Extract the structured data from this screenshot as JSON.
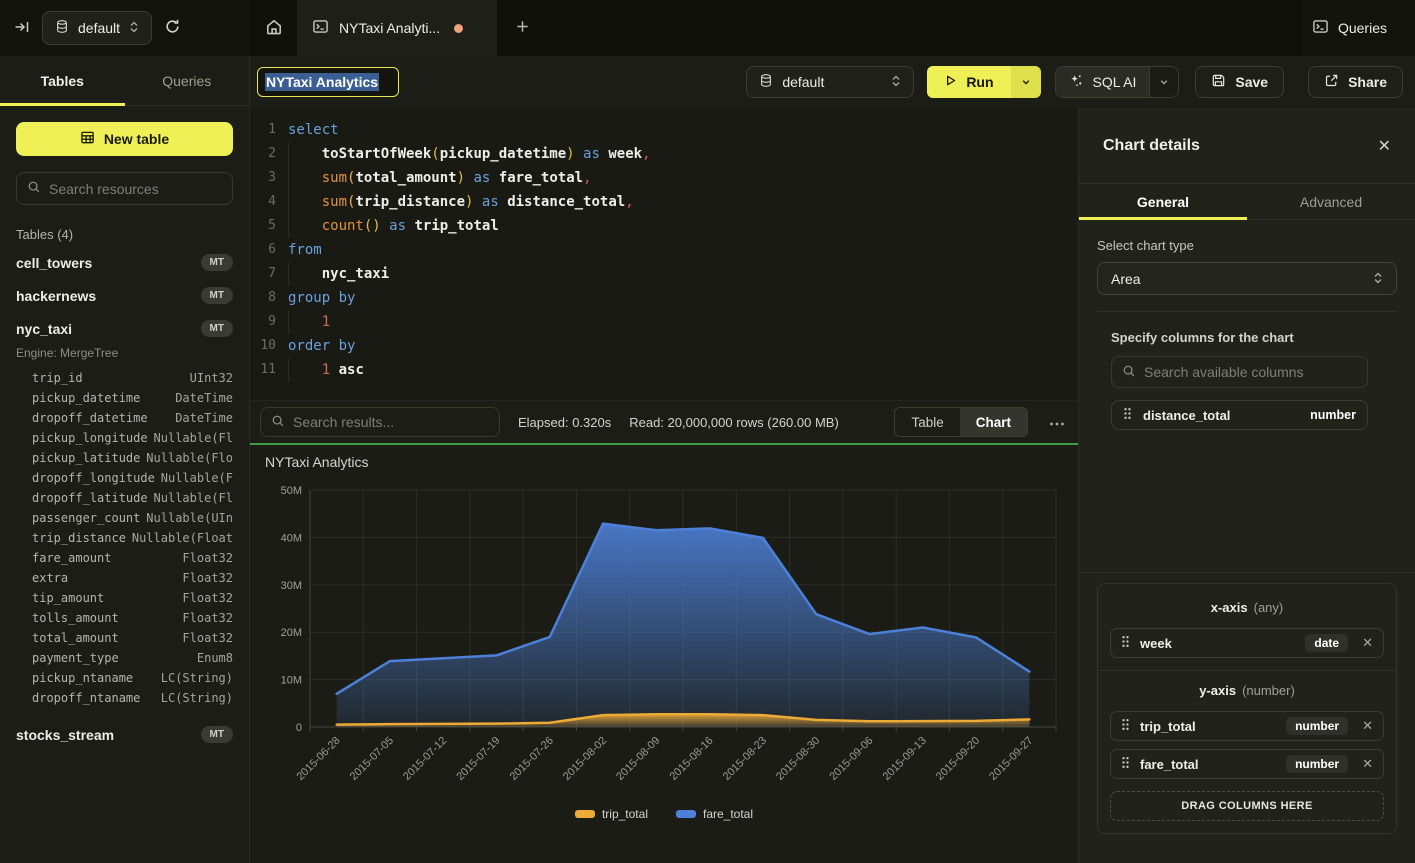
{
  "topbar": {
    "database_selector": {
      "value": "default"
    },
    "tab": {
      "title": "NYTaxi Analyti...",
      "unsaved": true
    },
    "queries_label": "Queries"
  },
  "toolbar": {
    "query_title": "NYTaxi Analytics",
    "database_selector": {
      "value": "default"
    },
    "run_label": "Run",
    "sql_ai_label": "SQL AI",
    "save_label": "Save",
    "share_label": "Share"
  },
  "sidebar": {
    "tabs": [
      {
        "label": "Tables",
        "active": true
      },
      {
        "label": "Queries",
        "active": false
      }
    ],
    "new_table_label": "New table",
    "search_placeholder": "Search resources",
    "section_label": "Tables (4)",
    "tables": [
      {
        "name": "cell_towers",
        "badge": "MT"
      },
      {
        "name": "hackernews",
        "badge": "MT"
      },
      {
        "name": "nyc_taxi",
        "badge": "MT",
        "engine": "Engine: MergeTree",
        "columns": [
          {
            "name": "trip_id",
            "type": "UInt32"
          },
          {
            "name": "pickup_datetime",
            "type": "DateTime"
          },
          {
            "name": "dropoff_datetime",
            "type": "DateTime"
          },
          {
            "name": "pickup_longitude",
            "type": "Nullable(Fl"
          },
          {
            "name": "pickup_latitude",
            "type": "Nullable(Flo"
          },
          {
            "name": "dropoff_longitude",
            "type": "Nullable(F"
          },
          {
            "name": "dropoff_latitude",
            "type": "Nullable(Fl"
          },
          {
            "name": "passenger_count",
            "type": "Nullable(UIn"
          },
          {
            "name": "trip_distance",
            "type": "Nullable(Float"
          },
          {
            "name": "fare_amount",
            "type": "Float32"
          },
          {
            "name": "extra",
            "type": "Float32"
          },
          {
            "name": "tip_amount",
            "type": "Float32"
          },
          {
            "name": "tolls_amount",
            "type": "Float32"
          },
          {
            "name": "total_amount",
            "type": "Float32"
          },
          {
            "name": "payment_type",
            "type": "Enum8"
          },
          {
            "name": "pickup_ntaname",
            "type": "LC(String)"
          },
          {
            "name": "dropoff_ntaname",
            "type": "LC(String)"
          }
        ]
      },
      {
        "name": "stocks_stream",
        "badge": "MT"
      }
    ]
  },
  "editor": {
    "lines": [
      {
        "n": 1,
        "ind": false,
        "tokens": [
          [
            "kw",
            "select"
          ]
        ]
      },
      {
        "n": 2,
        "ind": true,
        "tokens": [
          [
            "sp",
            "    "
          ],
          [
            "idb",
            "toStartOfWeek"
          ],
          [
            "par",
            "("
          ],
          [
            "idb",
            "pickup_datetime"
          ],
          [
            "par",
            ")"
          ],
          [
            "sp",
            " "
          ],
          [
            "kw",
            "as"
          ],
          [
            "sp",
            " "
          ],
          [
            "idb",
            "week"
          ],
          [
            "com",
            ","
          ]
        ]
      },
      {
        "n": 3,
        "ind": true,
        "tokens": [
          [
            "sp",
            "    "
          ],
          [
            "fn",
            "sum"
          ],
          [
            "par",
            "("
          ],
          [
            "idb",
            "total_amount"
          ],
          [
            "par",
            ")"
          ],
          [
            "sp",
            " "
          ],
          [
            "kw",
            "as"
          ],
          [
            "sp",
            " "
          ],
          [
            "idb",
            "fare_total"
          ],
          [
            "com",
            ","
          ]
        ]
      },
      {
        "n": 4,
        "ind": true,
        "tokens": [
          [
            "sp",
            "    "
          ],
          [
            "fn",
            "sum"
          ],
          [
            "par",
            "("
          ],
          [
            "idb",
            "trip_distance"
          ],
          [
            "par",
            ")"
          ],
          [
            "sp",
            " "
          ],
          [
            "kw",
            "as"
          ],
          [
            "sp",
            " "
          ],
          [
            "idb",
            "distance_total"
          ],
          [
            "com",
            ","
          ]
        ]
      },
      {
        "n": 5,
        "ind": true,
        "tokens": [
          [
            "sp",
            "    "
          ],
          [
            "fn",
            "count"
          ],
          [
            "par",
            "()"
          ],
          [
            "sp",
            " "
          ],
          [
            "kw",
            "as"
          ],
          [
            "sp",
            " "
          ],
          [
            "idb",
            "trip_total"
          ]
        ]
      },
      {
        "n": 6,
        "ind": false,
        "tokens": [
          [
            "kw",
            "from"
          ]
        ]
      },
      {
        "n": 7,
        "ind": true,
        "tokens": [
          [
            "sp",
            "    "
          ],
          [
            "idb",
            "nyc_taxi"
          ]
        ]
      },
      {
        "n": 8,
        "ind": false,
        "tokens": [
          [
            "kw",
            "group by"
          ]
        ]
      },
      {
        "n": 9,
        "ind": true,
        "tokens": [
          [
            "sp",
            "    "
          ],
          [
            "num",
            "1"
          ]
        ]
      },
      {
        "n": 10,
        "ind": false,
        "tokens": [
          [
            "kw",
            "order by"
          ]
        ]
      },
      {
        "n": 11,
        "ind": true,
        "tokens": [
          [
            "sp",
            "    "
          ],
          [
            "num",
            "1"
          ],
          [
            "sp",
            " "
          ],
          [
            "idb",
            "asc"
          ]
        ]
      }
    ]
  },
  "results": {
    "search_placeholder": "Search results...",
    "elapsed": "Elapsed: 0.320s",
    "read": "Read: 20,000,000 rows (260.00 MB)",
    "views": [
      {
        "label": "Table",
        "active": false
      },
      {
        "label": "Chart",
        "active": true
      }
    ]
  },
  "chart_data": {
    "type": "area",
    "title": "NYTaxi Analytics",
    "x": [
      "2015-06-28",
      "2015-07-05",
      "2015-07-12",
      "2015-07-19",
      "2015-07-26",
      "2015-08-02",
      "2015-08-09",
      "2015-08-16",
      "2015-08-23",
      "2015-08-30",
      "2015-09-06",
      "2015-09-13",
      "2015-09-20",
      "2015-09-27"
    ],
    "values_unit": "millions",
    "series": [
      {
        "name": "trip_total",
        "color": "#edaa35",
        "values": [
          0.5,
          0.6,
          0.65,
          0.7,
          0.9,
          2.5,
          2.7,
          2.7,
          2.5,
          1.5,
          1.2,
          1.25,
          1.3,
          1.6
        ]
      },
      {
        "name": "fare_total",
        "color": "#4d80d8",
        "values": [
          7.0,
          13.9,
          14.5,
          15.1,
          19.0,
          42.9,
          41.5,
          41.9,
          39.9,
          23.8,
          19.6,
          21.0,
          18.9,
          11.7
        ]
      }
    ],
    "ylim": [
      0,
      50
    ],
    "y_ticks": [
      "0",
      "10M",
      "20M",
      "30M",
      "40M",
      "50M"
    ],
    "x_label_rotation": 45,
    "grid": true,
    "legend_position": "bottom"
  },
  "chart_panel": {
    "title": "Chart details",
    "tabs": [
      {
        "label": "General",
        "active": true
      },
      {
        "label": "Advanced",
        "active": false
      }
    ],
    "chart_type_label": "Select chart type",
    "chart_type_value": "Area",
    "columns_label": "Specify columns for the chart",
    "search_placeholder": "Search available columns",
    "available_columns": [
      {
        "name": "distance_total",
        "type": "number"
      }
    ],
    "x_axis": {
      "title": "x-axis",
      "hint": "(any)",
      "items": [
        {
          "name": "week",
          "type": "date"
        }
      ]
    },
    "y_axis": {
      "title": "y-axis",
      "hint": "(number)",
      "items": [
        {
          "name": "trip_total",
          "type": "number"
        },
        {
          "name": "fare_total",
          "type": "number"
        }
      ]
    },
    "drop_label": "DRAG COLUMNS HERE"
  }
}
